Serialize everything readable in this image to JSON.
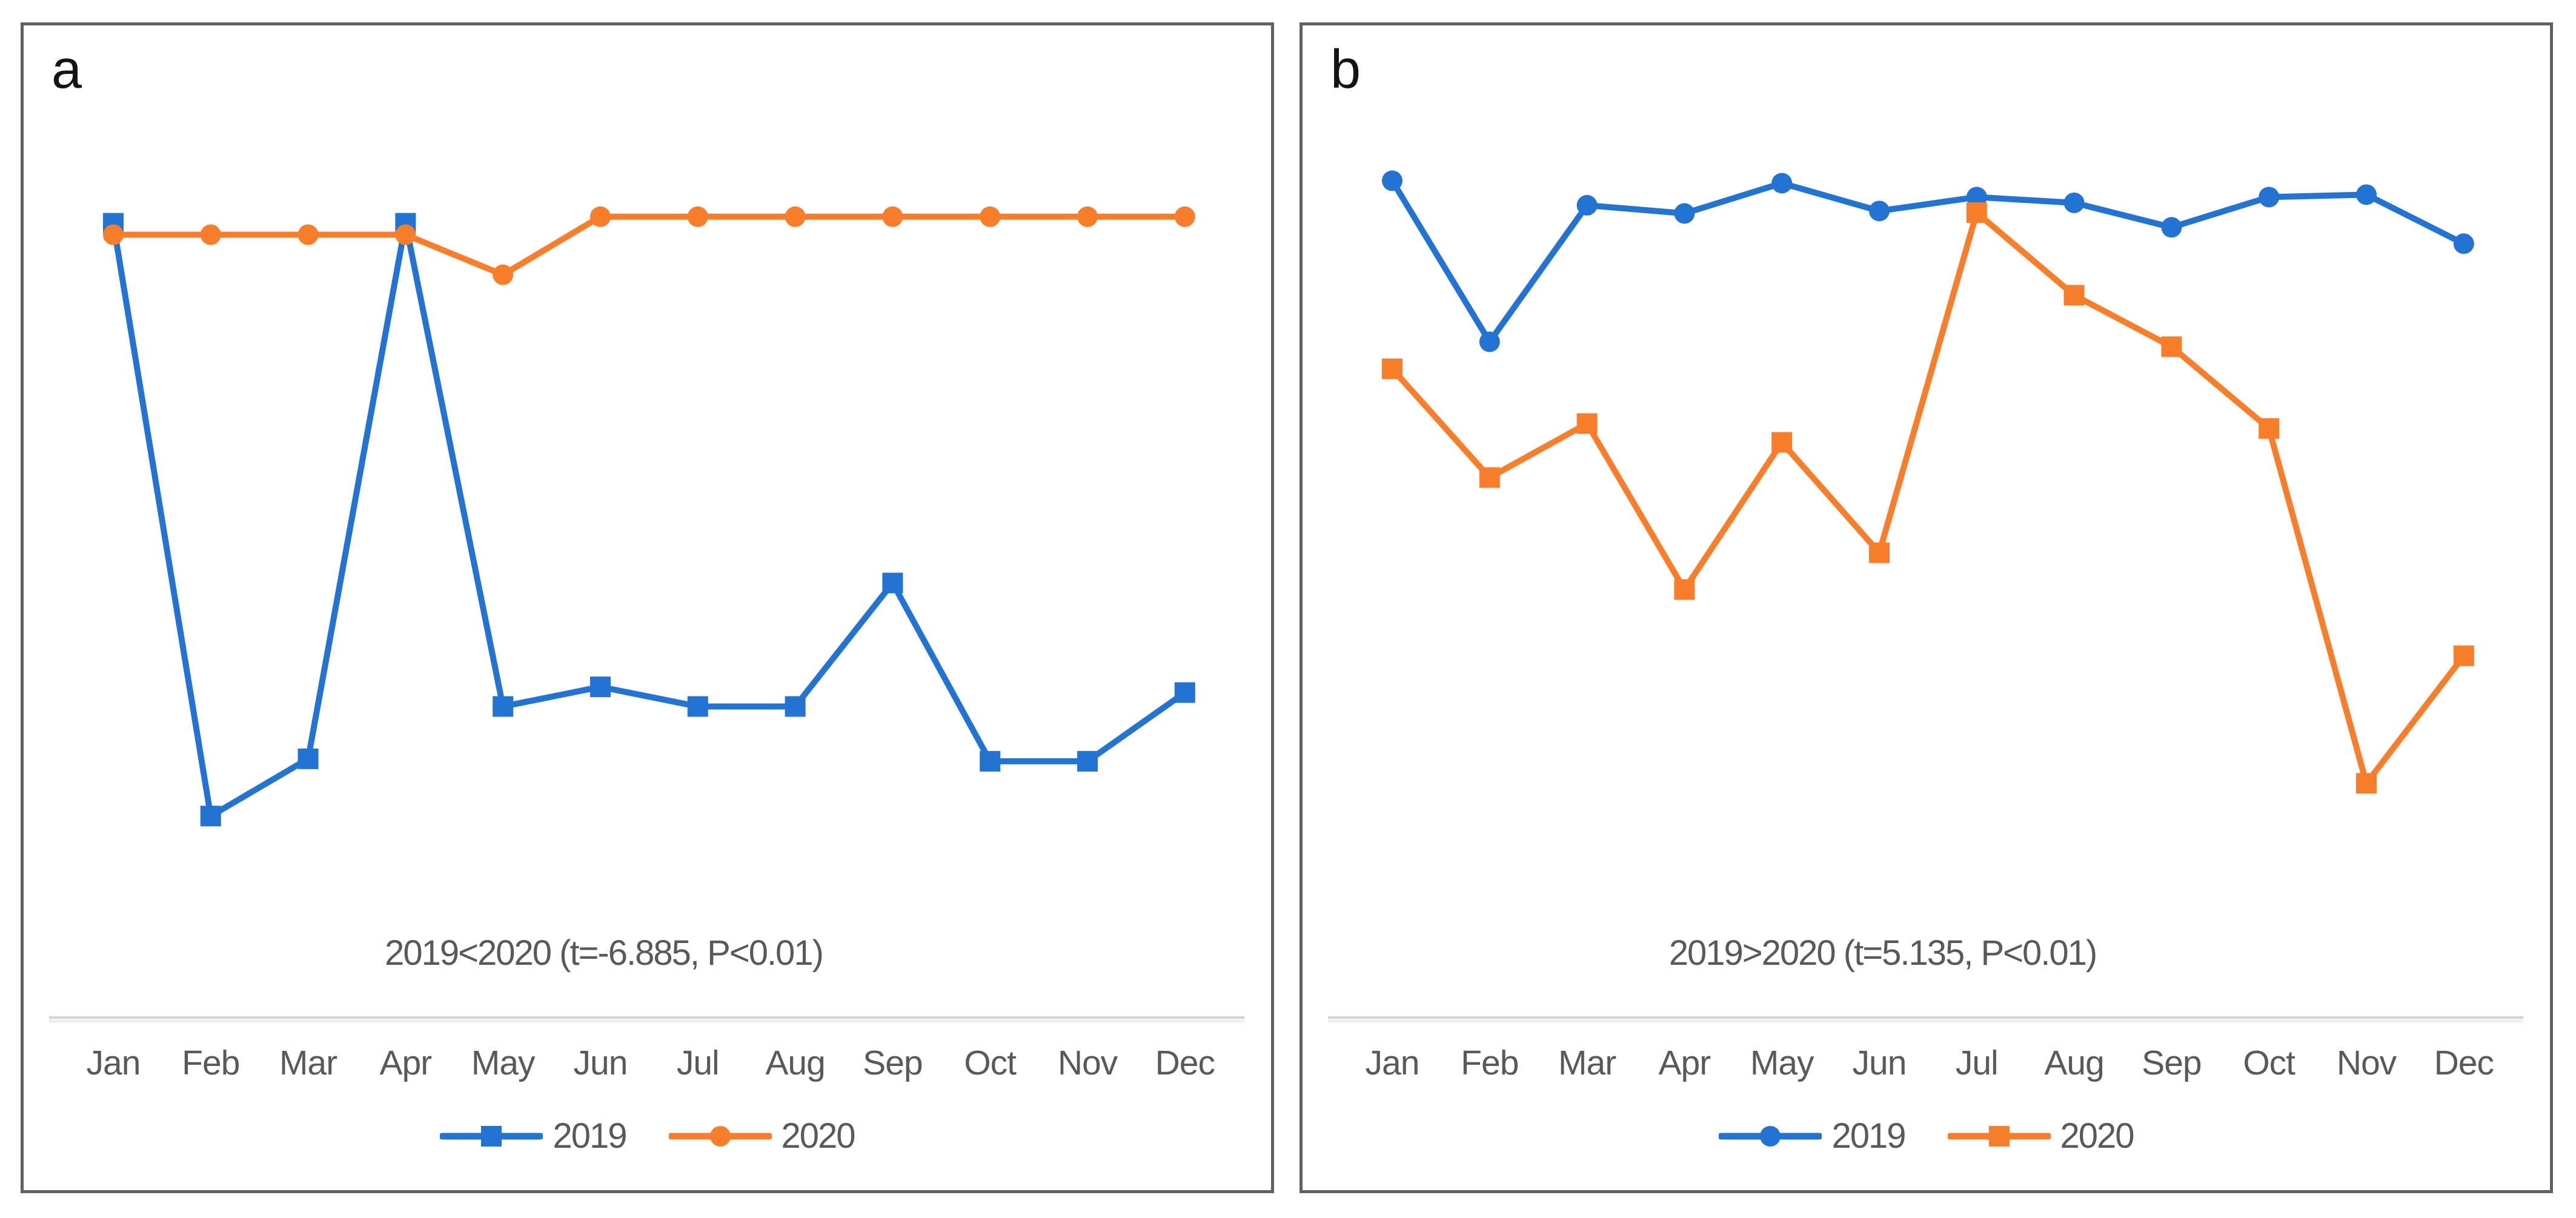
{
  "figure": {
    "background": "#FFFFFF",
    "panel_border_color": "#616161",
    "text_color": "#595959",
    "axis_line_color": "#D2D2D2",
    "panels": [
      {
        "label": "a"
      },
      {
        "label": "b"
      }
    ]
  },
  "chart_data": [
    {
      "panel": "a",
      "type": "line",
      "title": "",
      "xlabel": "",
      "ylabel": "",
      "x_categories": [
        "Jan",
        "Feb",
        "Mar",
        "Apr",
        "May",
        "Jun",
        "Jul",
        "Aug",
        "Sep",
        "Oct",
        "Nov",
        "Dec"
      ],
      "y_axis_note": "no y-axis or gridlines shown; values are relative vertical positions (0 = x-axis line, 100 = top of plot area)",
      "grid": "off",
      "legend_position": "bottom-center",
      "annotation": "2019<2020 (t=-6.885, P<0.01)",
      "series": [
        {
          "name": "2019",
          "color": "#2373D2",
          "marker": "square",
          "values": [
            94.4,
            21.9,
            28.9,
            94.4,
            35.3,
            37.7,
            35.3,
            35.3,
            50.4,
            28.6,
            28.6,
            37.0
          ]
        },
        {
          "name": "2020",
          "color": "#F97E2B",
          "marker": "circle",
          "values": [
            93.0,
            93.0,
            93.0,
            93.0,
            88.1,
            95.2,
            95.2,
            95.2,
            95.2,
            95.2,
            95.2,
            95.2
          ]
        }
      ]
    },
    {
      "panel": "b",
      "type": "line",
      "title": "",
      "xlabel": "",
      "ylabel": "",
      "x_categories": [
        "Jan",
        "Feb",
        "Mar",
        "Apr",
        "May",
        "Jun",
        "Jul",
        "Aug",
        "Sep",
        "Oct",
        "Nov",
        "Dec"
      ],
      "y_axis_note": "no y-axis or gridlines shown; values are relative vertical positions (0 = x-axis line, 100 = top of plot area)",
      "grid": "off",
      "legend_position": "bottom-center",
      "annotation": "2019>2020 (t=5.135, P<0.01)",
      "series": [
        {
          "name": "2019",
          "color": "#2373D2",
          "marker": "circle",
          "values": [
            99.6,
            79.9,
            96.6,
            95.6,
            99.3,
            95.9,
            97.6,
            96.9,
            93.9,
            97.6,
            97.9,
            91.9
          ]
        },
        {
          "name": "2020",
          "color": "#F97E2B",
          "marker": "square",
          "values": [
            76.6,
            63.3,
            69.9,
            49.6,
            67.6,
            54.1,
            95.7,
            85.6,
            79.3,
            69.3,
            25.9,
            41.5
          ]
        }
      ]
    }
  ]
}
